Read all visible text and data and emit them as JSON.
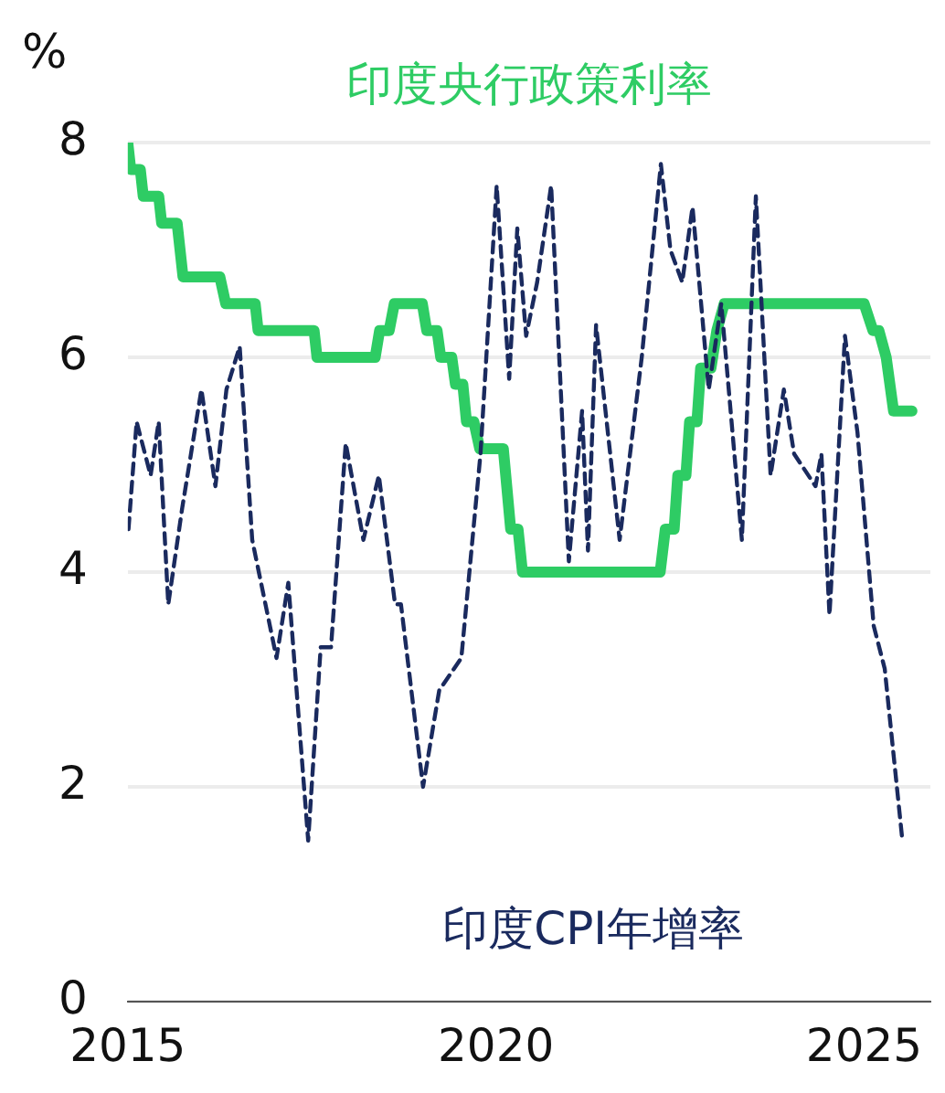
{
  "chart_data": {
    "type": "line",
    "ylabel": "%",
    "xlim": [
      2015,
      2025.9
    ],
    "xticks": [
      2015,
      2020,
      2025
    ],
    "ylim": [
      0,
      8
    ],
    "yticks": [
      0,
      2,
      4,
      6,
      8
    ],
    "grid": "y",
    "legend": false,
    "marker": "none",
    "series": [
      {
        "name": "印度央行政策利率",
        "color": "#2ecc64",
        "line_style": "solid",
        "x": [
          2015.0,
          2015.04,
          2015.17,
          2015.21,
          2015.42,
          2015.46,
          2015.67,
          2015.75,
          2016.25,
          2016.33,
          2016.73,
          2016.77,
          2017.53,
          2017.57,
          2018.36,
          2018.42,
          2018.55,
          2018.62,
          2019.0,
          2019.06,
          2019.2,
          2019.25,
          2019.4,
          2019.45,
          2019.55,
          2019.6,
          2019.7,
          2019.78,
          2020.1,
          2020.2,
          2020.3,
          2020.36,
          2022.23,
          2022.3,
          2022.42,
          2022.47,
          2022.58,
          2022.63,
          2022.73,
          2022.78,
          2022.92,
          2023.0,
          2023.1,
          2025.0,
          2025.12,
          2025.2,
          2025.3,
          2025.4,
          2025.65
        ],
        "values": [
          8.0,
          7.75,
          7.75,
          7.5,
          7.5,
          7.25,
          7.25,
          6.75,
          6.75,
          6.5,
          6.5,
          6.25,
          6.25,
          6.0,
          6.0,
          6.25,
          6.25,
          6.5,
          6.5,
          6.25,
          6.25,
          6.0,
          6.0,
          5.75,
          5.75,
          5.4,
          5.4,
          5.15,
          5.15,
          4.4,
          4.4,
          4.0,
          4.0,
          4.4,
          4.4,
          4.9,
          4.9,
          5.4,
          5.4,
          5.9,
          5.9,
          6.25,
          6.5,
          6.5,
          6.25,
          6.25,
          6.0,
          5.5,
          5.5
        ]
      },
      {
        "name": "印度CPI年增率",
        "color": "#1a2a5e",
        "line_style": "dashed",
        "x": [
          2015.01,
          2015.12,
          2015.31,
          2015.42,
          2015.55,
          2015.74,
          2016.0,
          2016.19,
          2016.34,
          2016.52,
          2016.69,
          2017.02,
          2017.18,
          2017.45,
          2017.62,
          2017.76,
          2017.96,
          2018.2,
          2018.41,
          2018.63,
          2018.71,
          2019.01,
          2019.23,
          2019.53,
          2019.79,
          2020.01,
          2020.18,
          2020.29,
          2020.41,
          2020.56,
          2020.75,
          2020.99,
          2021.17,
          2021.25,
          2021.36,
          2021.68,
          2021.98,
          2022.24,
          2022.37,
          2022.53,
          2022.67,
          2022.89,
          2023.06,
          2023.34,
          2023.53,
          2023.73,
          2023.91,
          2024.05,
          2024.34,
          2024.42,
          2024.53,
          2024.74,
          2024.91,
          2025.13,
          2025.28,
          2025.52
        ],
        "values": [
          4.4,
          5.4,
          4.9,
          5.4,
          3.7,
          4.6,
          5.7,
          4.8,
          5.7,
          6.1,
          4.3,
          3.2,
          3.9,
          1.5,
          3.3,
          3.3,
          5.2,
          4.3,
          4.9,
          3.7,
          3.7,
          2.0,
          2.9,
          3.2,
          5.1,
          7.6,
          5.8,
          7.2,
          6.2,
          6.7,
          7.6,
          4.1,
          5.5,
          4.2,
          6.3,
          4.3,
          6.0,
          7.8,
          7.0,
          6.7,
          7.4,
          5.7,
          6.5,
          4.3,
          7.5,
          4.9,
          5.7,
          5.1,
          4.8,
          5.1,
          3.6,
          6.2,
          5.3,
          3.5,
          3.1,
          1.5
        ]
      }
    ]
  }
}
